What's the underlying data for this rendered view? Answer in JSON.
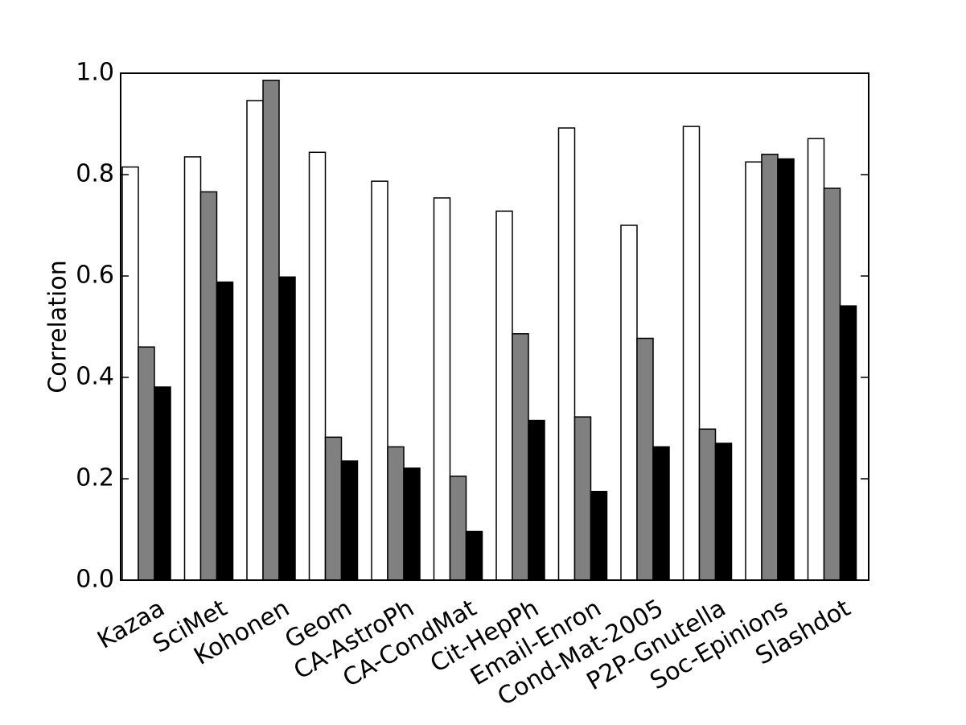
{
  "chart_data": {
    "type": "bar",
    "ylabel": "Correlation",
    "ylim": [
      0.0,
      1.0
    ],
    "yticks": [
      "0.0",
      "0.2",
      "0.4",
      "0.6",
      "0.8",
      "1.0"
    ],
    "grid": false,
    "categories": [
      "Kazaa",
      "SciMet",
      "Kohonen",
      "Geom",
      "CA-AstroPh",
      "CA-CondMat",
      "Cit-HepPh",
      "Email-Enron",
      "Cond-Mat-2005",
      "P2P-Gnutella",
      "Soc-Epinions",
      "Slashdot"
    ],
    "series": [
      {
        "color": "#ffffff",
        "values": [
          0.815,
          0.835,
          0.946,
          0.844,
          0.787,
          0.754,
          0.728,
          0.892,
          0.7,
          0.895,
          0.825,
          0.871
        ]
      },
      {
        "color": "#808080",
        "values": [
          0.46,
          0.766,
          0.986,
          0.282,
          0.263,
          0.205,
          0.486,
          0.322,
          0.477,
          0.298,
          0.84,
          0.773
        ]
      },
      {
        "color": "#000000",
        "values": [
          0.381,
          0.588,
          0.598,
          0.235,
          0.221,
          0.096,
          0.315,
          0.175,
          0.263,
          0.27,
          0.831,
          0.541
        ]
      }
    ]
  }
}
